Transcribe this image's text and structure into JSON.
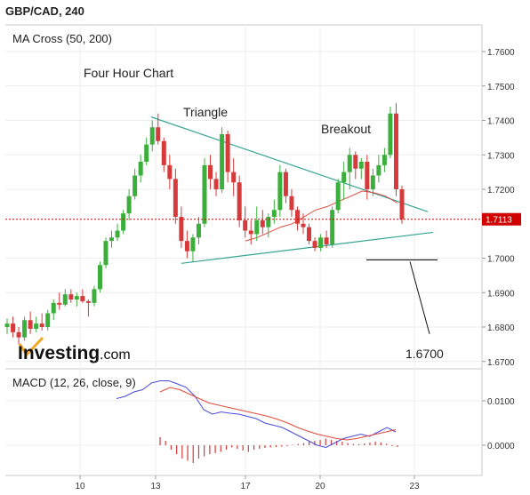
{
  "header": {
    "title": "GBP/CAD, 240"
  },
  "price_panel": {
    "indicator_label": "MA Cross (50, 200)"
  },
  "macd_panel": {
    "indicator_label": "MACD (12, 26, close, 9)"
  },
  "watermark": {
    "brand": "Investing",
    "suffix": ".com"
  },
  "annotations": {
    "four_hour": "Four Hour Chart",
    "triangle": "Triangle",
    "breakout": "Breakout",
    "target": "1.6700"
  },
  "colors": {
    "up": "#3cae3c",
    "down": "#d63a3a",
    "ma": "#e04a3c",
    "trend": "#36a596",
    "macd": "#4a4ad8",
    "signal": "#e04a3c",
    "hist": "#d63a3a",
    "price_line": "#d00000"
  },
  "chart_data": [
    {
      "type": "candlestick",
      "title": "GBP/CAD, 240",
      "x_ticks": [
        "10",
        "13",
        "17",
        "20",
        "23"
      ],
      "y_ticks": [
        "1.7600",
        "1.7500",
        "1.7400",
        "1.7300",
        "1.7200",
        "1.7000",
        "1.6900",
        "1.6800",
        "1.6700"
      ],
      "ylim": [
        1.665,
        1.765
      ],
      "current_price": "1.7113",
      "series": [
        {
          "name": "price",
          "ohlc": [
            [
              1.68,
              1.6825,
              1.678,
              1.681
            ],
            [
              1.681,
              1.683,
              1.677,
              1.6785
            ],
            [
              1.6785,
              1.68,
              1.675,
              1.677
            ],
            [
              1.677,
              1.683,
              1.676,
              1.682
            ],
            [
              1.682,
              1.6845,
              1.678,
              1.6795
            ],
            [
              1.6795,
              1.683,
              1.6785,
              1.681
            ],
            [
              1.681,
              1.684,
              1.679,
              1.68
            ],
            [
              1.68,
              1.685,
              1.679,
              1.684
            ],
            [
              1.684,
              1.688,
              1.682,
              1.687
            ],
            [
              1.687,
              1.69,
              1.685,
              1.6865
            ],
            [
              1.6865,
              1.691,
              1.686,
              1.6895
            ],
            [
              1.6895,
              1.691,
              1.687,
              1.688
            ],
            [
              1.688,
              1.69,
              1.686,
              1.689
            ],
            [
              1.689,
              1.691,
              1.687,
              1.6875
            ],
            [
              1.6875,
              1.688,
              1.683,
              1.687
            ],
            [
              1.687,
              1.692,
              1.686,
              1.691
            ],
            [
              1.691,
              1.699,
              1.69,
              1.698
            ],
            [
              1.698,
              1.706,
              1.697,
              1.705
            ],
            [
              1.705,
              1.708,
              1.703,
              1.706
            ],
            [
              1.706,
              1.71,
              1.705,
              1.708
            ],
            [
              1.708,
              1.714,
              1.707,
              1.713
            ],
            [
              1.713,
              1.72,
              1.711,
              1.718
            ],
            [
              1.718,
              1.726,
              1.717,
              1.724
            ],
            [
              1.724,
              1.73,
              1.722,
              1.728
            ],
            [
              1.728,
              1.735,
              1.727,
              1.733
            ],
            [
              1.733,
              1.74,
              1.731,
              1.738
            ],
            [
              1.738,
              1.742,
              1.733,
              1.734
            ],
            [
              1.734,
              1.735,
              1.725,
              1.727
            ],
            [
              1.727,
              1.73,
              1.72,
              1.723
            ],
            [
              1.723,
              1.726,
              1.71,
              1.712
            ],
            [
              1.712,
              1.715,
              1.703,
              1.705
            ],
            [
              1.705,
              1.708,
              1.7,
              1.702
            ],
            [
              1.702,
              1.707,
              1.699,
              1.706
            ],
            [
              1.706,
              1.712,
              1.704,
              1.71
            ],
            [
              1.71,
              1.729,
              1.709,
              1.727
            ],
            [
              1.727,
              1.73,
              1.72,
              1.723
            ],
            [
              1.723,
              1.725,
              1.718,
              1.72
            ],
            [
              1.72,
              1.738,
              1.719,
              1.736
            ],
            [
              1.736,
              1.737,
              1.722,
              1.725
            ],
            [
              1.725,
              1.729,
              1.718,
              1.722
            ],
            [
              1.722,
              1.724,
              1.709,
              1.711
            ],
            [
              1.711,
              1.715,
              1.706,
              1.708
            ],
            [
              1.708,
              1.711,
              1.704,
              1.707
            ],
            [
              1.707,
              1.715,
              1.705,
              1.711
            ],
            [
              1.711,
              1.714,
              1.707,
              1.709
            ],
            [
              1.709,
              1.713,
              1.706,
              1.712
            ],
            [
              1.712,
              1.717,
              1.71,
              1.714
            ],
            [
              1.714,
              1.727,
              1.712,
              1.725
            ],
            [
              1.725,
              1.726,
              1.716,
              1.718
            ],
            [
              1.718,
              1.72,
              1.712,
              1.714
            ],
            [
              1.714,
              1.715,
              1.708,
              1.71
            ],
            [
              1.71,
              1.713,
              1.707,
              1.709
            ],
            [
              1.709,
              1.71,
              1.704,
              1.705
            ],
            [
              1.705,
              1.706,
              1.702,
              1.703
            ],
            [
              1.703,
              1.707,
              1.702,
              1.706
            ],
            [
              1.706,
              1.708,
              1.703,
              1.704
            ],
            [
              1.704,
              1.715,
              1.703,
              1.714
            ],
            [
              1.714,
              1.723,
              1.713,
              1.722
            ],
            [
              1.722,
              1.728,
              1.717,
              1.725
            ],
            [
              1.725,
              1.732,
              1.72,
              1.73
            ],
            [
              1.73,
              1.731,
              1.723,
              1.726
            ],
            [
              1.726,
              1.729,
              1.723,
              1.728
            ],
            [
              1.728,
              1.73,
              1.717,
              1.72
            ],
            [
              1.72,
              1.726,
              1.718,
              1.724
            ],
            [
              1.724,
              1.73,
              1.722,
              1.727
            ],
            [
              1.727,
              1.732,
              1.725,
              1.73
            ],
            [
              1.73,
              1.744,
              1.729,
              1.742
            ],
            [
              1.742,
              1.745,
              1.718,
              1.72
            ],
            [
              1.72,
              1.721,
              1.71,
              1.7113
            ]
          ]
        },
        {
          "name": "MA",
          "values": [
            1.705,
            1.706,
            1.7075,
            1.709,
            1.71,
            1.712,
            1.714,
            1.715,
            1.7165,
            1.718,
            1.7195,
            1.719,
            1.718,
            1.716
          ]
        }
      ],
      "annotations": [
        "Four Hour Chart",
        "Triangle",
        "Breakout",
        "1.6700"
      ]
    },
    {
      "type": "line",
      "title": "MACD (12, 26, close, 9)",
      "y_ticks": [
        "0.0100",
        "0.0000"
      ],
      "ylim": [
        -0.005,
        0.015
      ],
      "series": [
        {
          "name": "MACD",
          "values": [
            0.0105,
            0.011,
            0.012,
            0.0125,
            0.014,
            0.0145,
            0.0145,
            0.0138,
            0.013,
            0.011,
            0.008,
            0.007,
            0.0075,
            0.0072,
            0.007,
            0.0065,
            0.006,
            0.005,
            0.0045,
            0.004,
            0.003,
            0.002,
            0.001,
            0.0,
            -0.0005,
            0.0005,
            0.0015,
            0.002,
            0.0025,
            0.002,
            0.003,
            0.004,
            0.003
          ]
        },
        {
          "name": "Signal",
          "values": [
            0.012,
            0.013,
            0.0125,
            0.0115,
            0.0105,
            0.0095,
            0.009,
            0.0085,
            0.008,
            0.0075,
            0.007,
            0.0065,
            0.0058,
            0.005,
            0.004,
            0.0032,
            0.0025,
            0.002,
            0.0015,
            0.0012,
            0.0015,
            0.002,
            0.0025,
            0.003,
            0.0035
          ]
        },
        {
          "name": "Histogram",
          "values": [
            0.0018,
            0.001,
            -0.001,
            -0.002,
            -0.003,
            -0.0035,
            -0.004,
            -0.003,
            -0.0025,
            -0.002,
            -0.0018,
            -0.0015,
            -0.001,
            -0.0005,
            -0.0008,
            -0.0012,
            -0.0015,
            -0.001,
            -0.0008,
            -0.0006,
            -0.0005,
            -0.0004,
            -0.0003,
            -0.0002,
            0.0001,
            0.0003,
            0.0005,
            0.0008,
            0.001,
            0.0012,
            0.0015,
            0.0012,
            0.001,
            0.0008,
            0.0005,
            0.0003,
            0.0002,
            0.0004,
            0.0006,
            0.0008,
            0.0006,
            0.0003,
            -0.0002,
            -0.0004
          ]
        }
      ]
    }
  ]
}
